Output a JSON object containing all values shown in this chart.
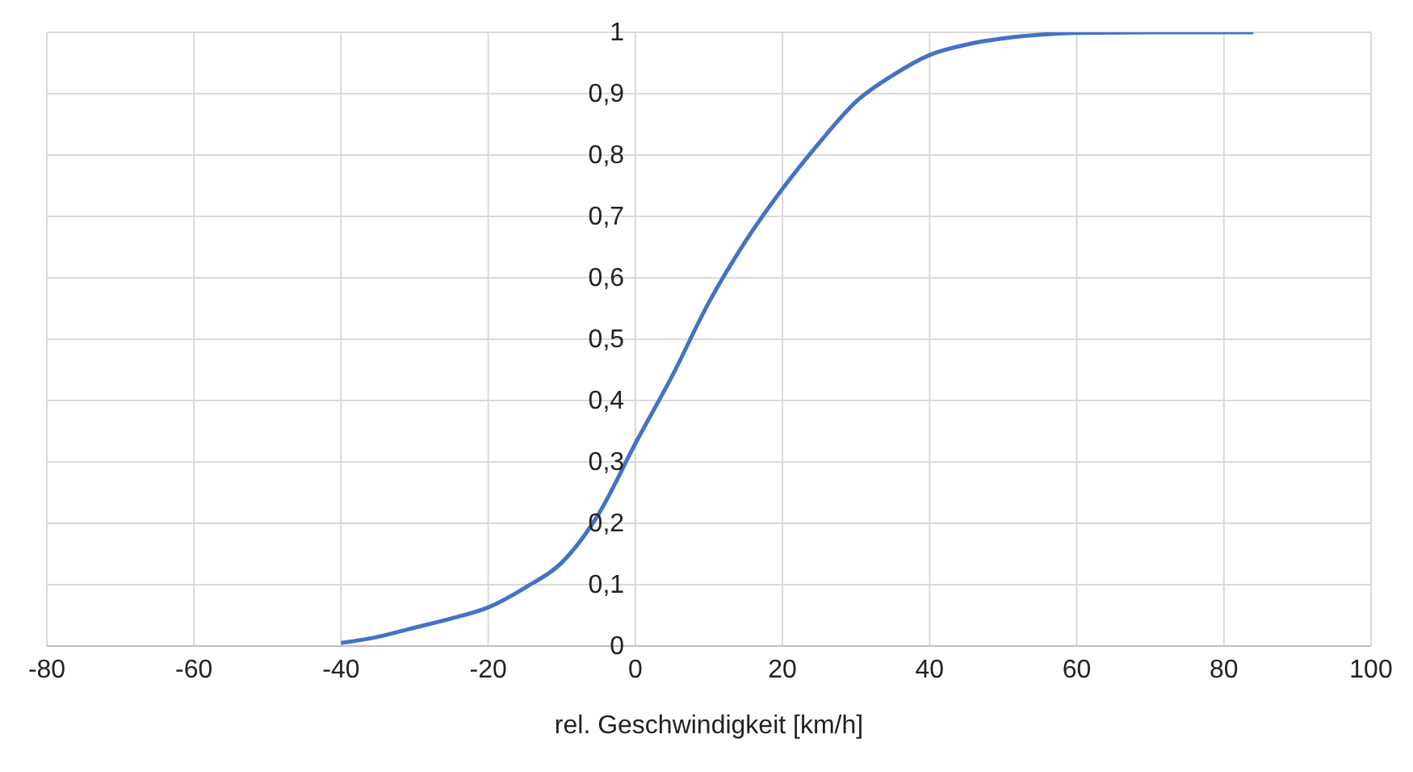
{
  "chart_data": {
    "type": "line",
    "xlabel": "rel. Geschwindigkeit [km/h]",
    "x": [
      -40,
      -35,
      -30,
      -25,
      -20,
      -15,
      -10,
      -5,
      0,
      5,
      10,
      15,
      20,
      25,
      30,
      35,
      40,
      45,
      50,
      55,
      60,
      70,
      84
    ],
    "series": [
      {
        "color": "#4472c4",
        "values": [
          0.005,
          0.015,
          0.03,
          0.045,
          0.063,
          0.095,
          0.136,
          0.215,
          0.33,
          0.44,
          0.56,
          0.66,
          0.745,
          0.82,
          0.887,
          0.93,
          0.963,
          0.98,
          0.99,
          0.996,
          0.999,
          1,
          1
        ]
      }
    ],
    "xlim": [
      -80,
      100
    ],
    "xticks": [
      -80,
      -60,
      -40,
      -20,
      0,
      20,
      40,
      60,
      80,
      100
    ],
    "ylim": [
      0,
      1
    ],
    "yticks": [
      0,
      {
        "value": 0.1,
        "label": "0,1"
      },
      {
        "value": 0.2,
        "label": "0,2"
      },
      {
        "value": 0.3,
        "label": "0,3"
      },
      {
        "value": 0.4,
        "label": "0,4"
      },
      {
        "value": 0.5,
        "label": "0,5"
      },
      {
        "value": 0.6,
        "label": "0,6"
      },
      {
        "value": 0.7,
        "label": "0,7"
      },
      {
        "value": 0.8,
        "label": "0,8"
      },
      {
        "value": 0.9,
        "label": "0,9"
      },
      1
    ],
    "grid": true,
    "legend": false,
    "marker": "none",
    "line_style": "solid"
  }
}
